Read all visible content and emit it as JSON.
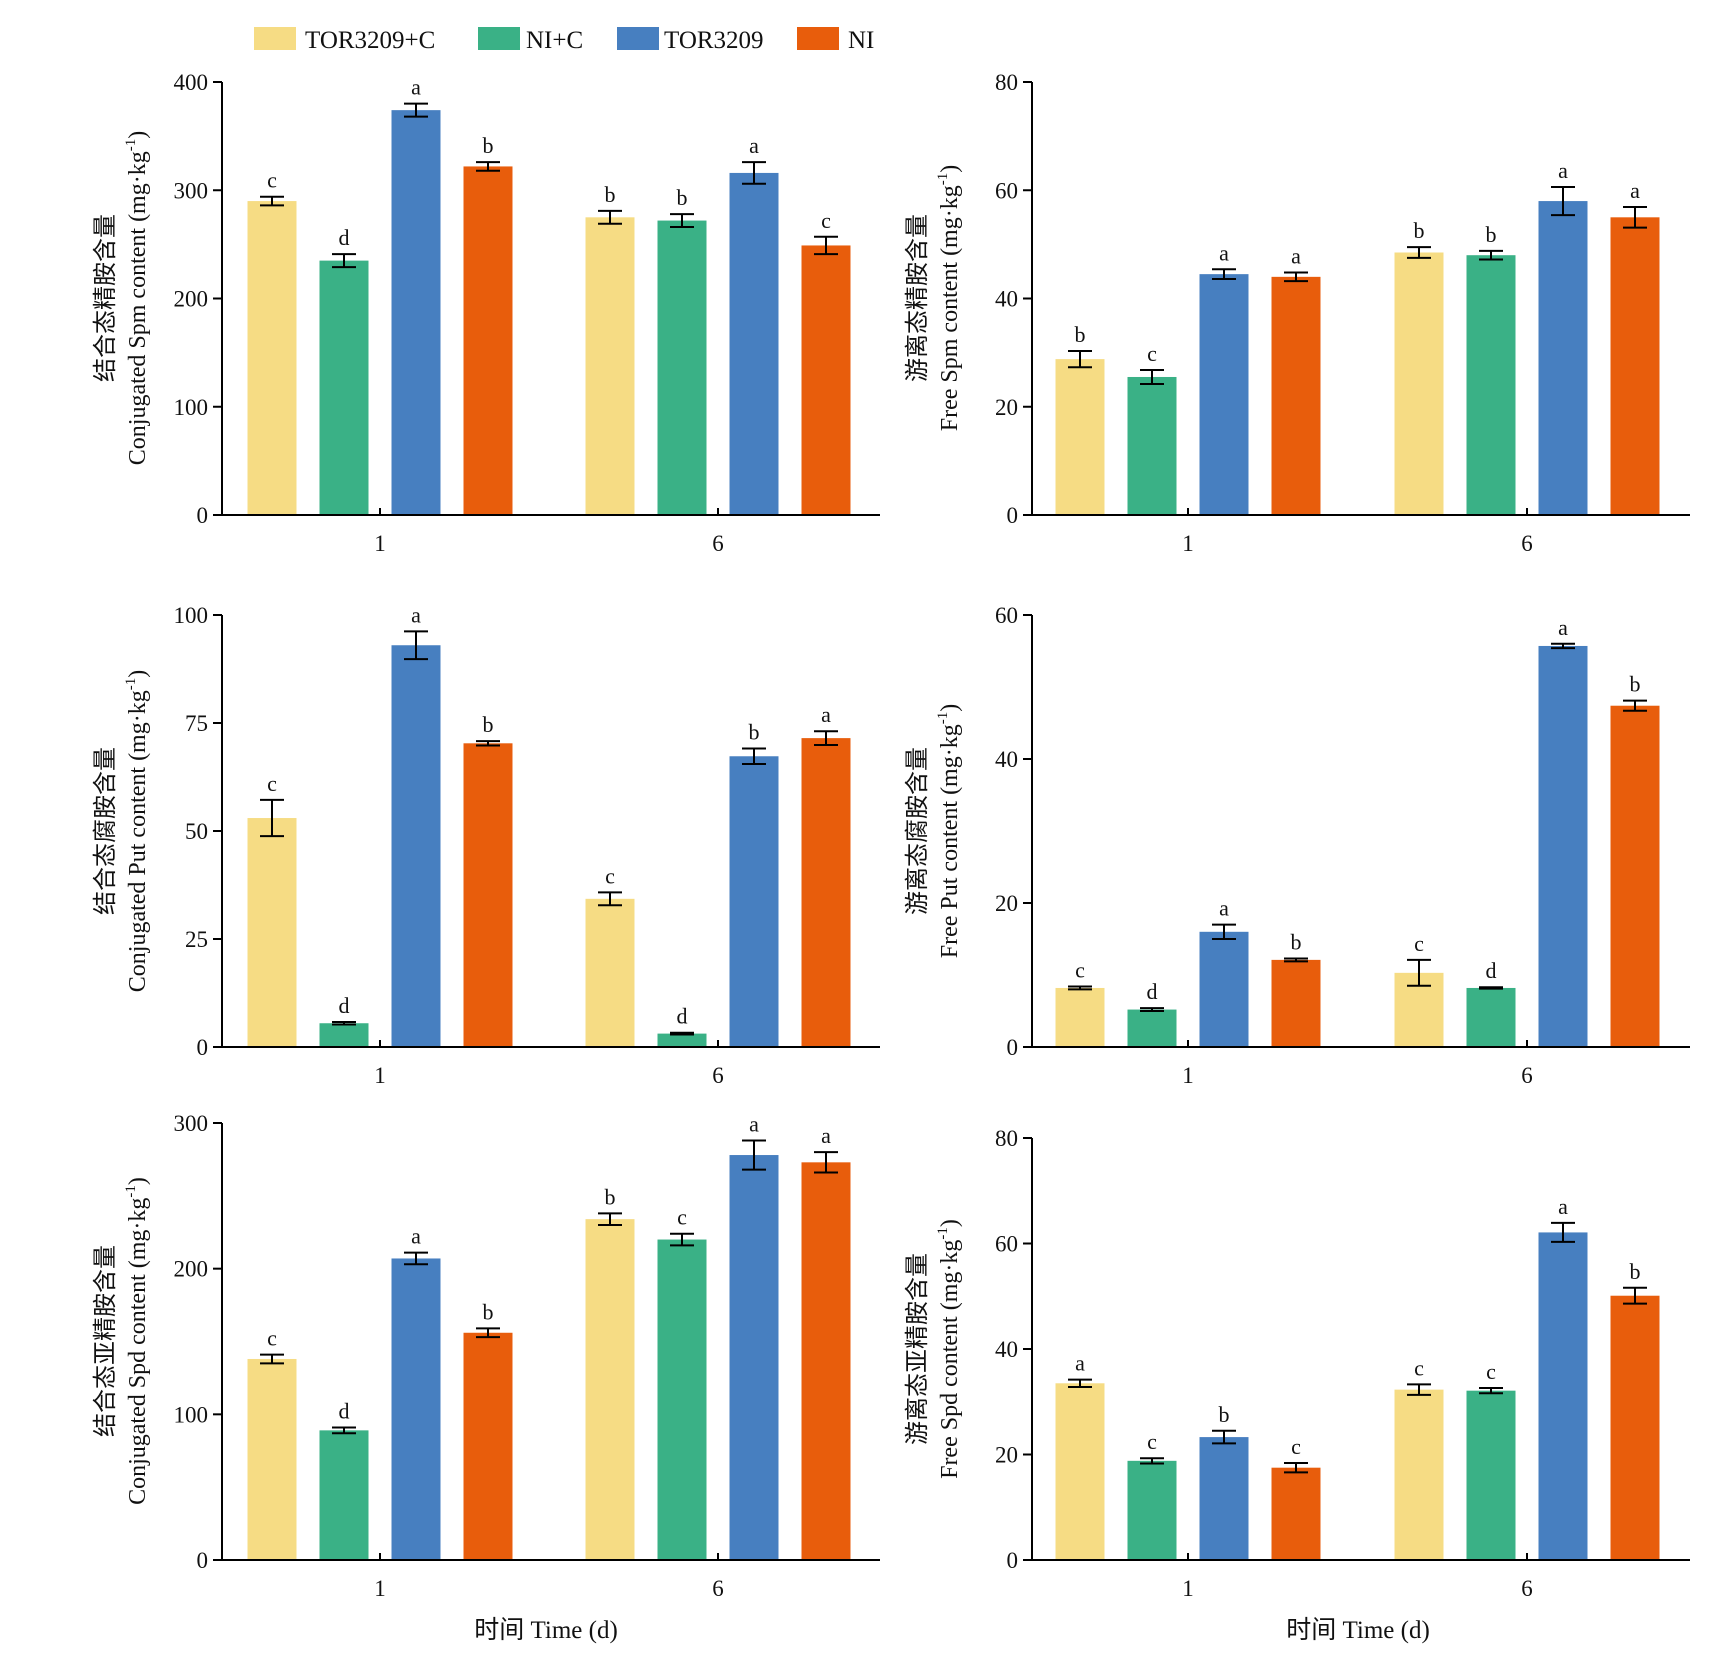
{
  "legend": [
    {
      "label": "TOR3209+C",
      "color": "#F6DC84"
    },
    {
      "label": "NI+C",
      "color": "#3AB186"
    },
    {
      "label": "TOR3209",
      "color": "#477FC0"
    },
    {
      "label": "NI",
      "color": "#E85D0C"
    }
  ],
  "x_axis_title": "时间 Time (d)",
  "chart_data": [
    {
      "type": "bar",
      "ylabel_cn": "结合态精胺含量",
      "ylabel_en": "Conjugated Spm content (mg·kg",
      "ylabel_sup": "-1",
      "ylabel_close": ")",
      "categories": [
        "1",
        "6"
      ],
      "ylim": [
        0,
        400
      ],
      "yticks": [
        0,
        100,
        200,
        300,
        400
      ],
      "series": [
        {
          "name": "TOR3209+C",
          "values": [
            290,
            275
          ],
          "errors": [
            4,
            6
          ],
          "letters": [
            "c",
            "b"
          ]
        },
        {
          "name": "NI+C",
          "values": [
            235,
            272
          ],
          "errors": [
            6,
            6
          ],
          "letters": [
            "d",
            "b"
          ]
        },
        {
          "name": "TOR3209",
          "values": [
            374,
            316
          ],
          "errors": [
            6,
            10
          ],
          "letters": [
            "a",
            "a"
          ]
        },
        {
          "name": "NI",
          "values": [
            322,
            249
          ],
          "errors": [
            4,
            8
          ],
          "letters": [
            "b",
            "c"
          ]
        }
      ]
    },
    {
      "type": "bar",
      "ylabel_cn": "游离态精胺含量",
      "ylabel_en": "Free Spm content (mg·kg",
      "ylabel_sup": "-1",
      "ylabel_close": ")",
      "categories": [
        "1",
        "6"
      ],
      "ylim": [
        0,
        80
      ],
      "yticks": [
        0,
        20,
        40,
        60,
        80
      ],
      "series": [
        {
          "name": "TOR3209+C",
          "values": [
            28.8,
            48.5
          ],
          "errors": [
            1.5,
            1.0
          ],
          "letters": [
            "b",
            "b"
          ]
        },
        {
          "name": "NI+C",
          "values": [
            25.5,
            48.0
          ],
          "errors": [
            1.3,
            0.8
          ],
          "letters": [
            "c",
            "b"
          ]
        },
        {
          "name": "TOR3209",
          "values": [
            44.5,
            58.0
          ],
          "errors": [
            0.9,
            2.6
          ],
          "letters": [
            "a",
            "a"
          ]
        },
        {
          "name": "NI",
          "values": [
            44.0,
            55.0
          ],
          "errors": [
            0.8,
            1.9
          ],
          "letters": [
            "a",
            "a"
          ]
        }
      ]
    },
    {
      "type": "bar",
      "ylabel_cn": "结合态腐胺含量",
      "ylabel_en": "Conjugated Put content (mg·kg",
      "ylabel_sup": "-1",
      "ylabel_close": ")",
      "categories": [
        "1",
        "6"
      ],
      "ylim": [
        0,
        100
      ],
      "yticks": [
        0,
        25,
        50,
        75,
        100
      ],
      "series": [
        {
          "name": "TOR3209+C",
          "values": [
            53,
            34.3
          ],
          "errors": [
            4.2,
            1.5
          ],
          "letters": [
            "c",
            "c"
          ]
        },
        {
          "name": "NI+C",
          "values": [
            5.5,
            3.1
          ],
          "errors": [
            0.3,
            0.2
          ],
          "letters": [
            "d",
            "d"
          ]
        },
        {
          "name": "TOR3209",
          "values": [
            93,
            67.3
          ],
          "errors": [
            3.2,
            1.8
          ],
          "letters": [
            "a",
            "b"
          ]
        },
        {
          "name": "NI",
          "values": [
            70.3,
            71.5
          ],
          "errors": [
            0.5,
            1.6
          ],
          "letters": [
            "b",
            "a"
          ]
        }
      ]
    },
    {
      "type": "bar",
      "ylabel_cn": "游离态腐胺含量",
      "ylabel_en": "Free Put content (mg·kg",
      "ylabel_sup": "-1",
      "ylabel_close": ")",
      "categories": [
        "1",
        "6"
      ],
      "ylim": [
        0,
        60
      ],
      "yticks": [
        0,
        20,
        40,
        60
      ],
      "series": [
        {
          "name": "TOR3209+C",
          "values": [
            8.2,
            10.3
          ],
          "errors": [
            0.2,
            1.8
          ],
          "letters": [
            "c",
            "c"
          ]
        },
        {
          "name": "NI+C",
          "values": [
            5.2,
            8.2
          ],
          "errors": [
            0.2,
            0.1
          ],
          "letters": [
            "d",
            "d"
          ]
        },
        {
          "name": "TOR3209",
          "values": [
            16.0,
            55.7
          ],
          "errors": [
            1.0,
            0.3
          ],
          "letters": [
            "a",
            "a"
          ]
        },
        {
          "name": "NI",
          "values": [
            12.1,
            47.4
          ],
          "errors": [
            0.2,
            0.7
          ],
          "letters": [
            "b",
            "b"
          ]
        }
      ]
    },
    {
      "type": "bar",
      "ylabel_cn": "结合态亚精胺含量",
      "ylabel_en": "Conjugated Spd content (mg·kg",
      "ylabel_sup": "-1",
      "ylabel_close": ")",
      "categories": [
        "1",
        "6"
      ],
      "ylim": [
        0,
        300
      ],
      "yticks": [
        0,
        100,
        200,
        300
      ],
      "series": [
        {
          "name": "TOR3209+C",
          "values": [
            138,
            234
          ],
          "errors": [
            3,
            4
          ],
          "letters": [
            "c",
            "b"
          ]
        },
        {
          "name": "NI+C",
          "values": [
            89,
            220
          ],
          "errors": [
            2,
            4
          ],
          "letters": [
            "d",
            "c"
          ]
        },
        {
          "name": "TOR3209",
          "values": [
            207,
            278
          ],
          "errors": [
            4,
            10
          ],
          "letters": [
            "a",
            "a"
          ]
        },
        {
          "name": "NI",
          "values": [
            156,
            273
          ],
          "errors": [
            3,
            7
          ],
          "letters": [
            "b",
            "a"
          ]
        }
      ]
    },
    {
      "type": "bar",
      "ylabel_cn": "游离态亚精胺含量",
      "ylabel_en": "Free Spd content (mg·kg",
      "ylabel_sup": "-1",
      "ylabel_close": ")",
      "categories": [
        "1",
        "6"
      ],
      "ylim": [
        0,
        80
      ],
      "yticks": [
        0,
        20,
        40,
        60,
        80
      ],
      "series": [
        {
          "name": "TOR3209+C",
          "values": [
            33.5,
            32.3
          ],
          "errors": [
            0.7,
            1.0
          ],
          "letters": [
            "a",
            "c"
          ]
        },
        {
          "name": "NI+C",
          "values": [
            18.8,
            32.1
          ],
          "errors": [
            0.5,
            0.5
          ],
          "letters": [
            "c",
            "c"
          ]
        },
        {
          "name": "TOR3209",
          "values": [
            23.3,
            62.1
          ],
          "errors": [
            1.2,
            1.8
          ],
          "letters": [
            "b",
            "a"
          ]
        },
        {
          "name": "NI",
          "values": [
            17.5,
            50.1
          ],
          "errors": [
            0.9,
            1.5
          ],
          "letters": [
            "c",
            "b"
          ]
        }
      ]
    }
  ]
}
